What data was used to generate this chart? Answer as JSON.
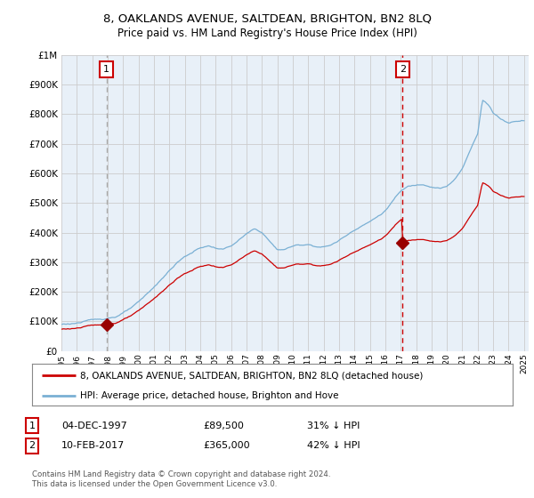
{
  "title_line1": "8, OAKLANDS AVENUE, SALTDEAN, BRIGHTON, BN2 8LQ",
  "title_line2": "Price paid vs. HM Land Registry's House Price Index (HPI)",
  "legend_label1": "8, OAKLANDS AVENUE, SALTDEAN, BRIGHTON, BN2 8LQ (detached house)",
  "legend_label2": "HPI: Average price, detached house, Brighton and Hove",
  "annotation1_date": "04-DEC-1997",
  "annotation1_price": "£89,500",
  "annotation1_hpi": "31% ↓ HPI",
  "annotation2_date": "10-FEB-2017",
  "annotation2_price": "£365,000",
  "annotation2_hpi": "42% ↓ HPI",
  "footnote": "Contains HM Land Registry data © Crown copyright and database right 2024.\nThis data is licensed under the Open Government Licence v3.0.",
  "sale1_year": 1997.92,
  "sale1_price": 89500,
  "sale2_year": 2017.12,
  "sale2_price": 365000,
  "price_color": "#cc0000",
  "hpi_color": "#7ab0d4",
  "vline1_color": "#aaaaaa",
  "vline2_color": "#cc0000",
  "dot_color": "#990000",
  "background_color": "#ffffff",
  "plot_bg_color": "#e8f0f8",
  "grid_color": "#cccccc",
  "ylim_max": 1000000,
  "xlim_start": 1995.0,
  "xlim_end": 2025.3
}
